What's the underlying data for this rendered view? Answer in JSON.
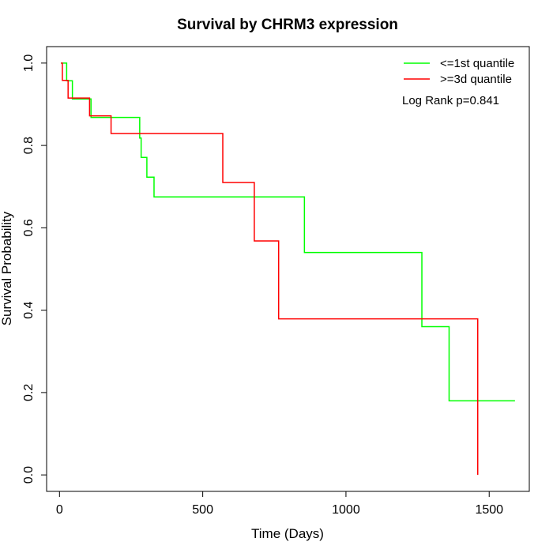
{
  "chart_data": {
    "type": "line",
    "title": "Survival by CHRM3 expression",
    "xlabel": "Time (Days)",
    "ylabel": "Survival Probability",
    "xlim": [
      -45,
      1640
    ],
    "ylim": [
      -0.04,
      1.04
    ],
    "xticks": [
      0,
      500,
      1000,
      1500
    ],
    "yticks": [
      0.0,
      0.2,
      0.4,
      0.6,
      0.8,
      1.0
    ],
    "xtick_labels": [
      "0",
      "500",
      "1000",
      "1500"
    ],
    "ytick_labels": [
      "0.0",
      "0.2",
      "0.4",
      "0.6",
      "0.8",
      "1.0"
    ],
    "grid": false,
    "legend_position": "top-right",
    "annotation": "Log Rank p=0.841",
    "series": [
      {
        "name": "<=1st quantile",
        "color": "#00ff00",
        "step": true,
        "x": [
          5,
          25,
          45,
          110,
          280,
          285,
          305,
          330,
          855,
          1265,
          1360,
          1590
        ],
        "y": [
          1.0,
          0.957,
          0.913,
          0.868,
          0.818,
          0.771,
          0.723,
          0.675,
          0.54,
          0.36,
          0.18,
          0.18
        ]
      },
      {
        "name": ">=3d quantile",
        "color": "#ff0000",
        "step": true,
        "x": [
          5,
          10,
          30,
          105,
          180,
          570,
          680,
          765,
          1460,
          1460
        ],
        "y": [
          1.0,
          0.958,
          0.915,
          0.872,
          0.829,
          0.71,
          0.568,
          0.379,
          0.379,
          0.0
        ]
      }
    ]
  }
}
